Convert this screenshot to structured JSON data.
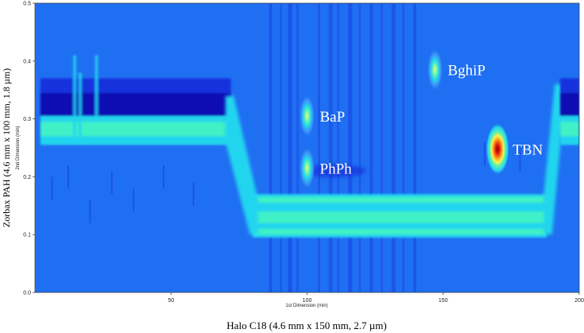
{
  "chart_data": {
    "type": "heatmap",
    "title": "",
    "xlabel": "1st Dimension (min)",
    "ylabel": "2nd Dimension (min)",
    "outer_xlabel": "Halo C18 (4.6 mm x 150 mm, 2.7 µm)",
    "outer_ylabel": "Zorbax PAH (4.6 mm x 100 mm, 1.8 µm)",
    "xlim": [
      0,
      200
    ],
    "ylim": [
      0,
      0.5
    ],
    "x_ticks": [
      "50",
      "100",
      "150",
      "200"
    ],
    "y_ticks": [
      "0.0",
      "0.1",
      "0.2",
      "0.3",
      "0.4",
      "0.5"
    ],
    "colorscale": [
      "#1f6ff2",
      "#1733dd",
      "#0a10b3",
      "#22d5ee",
      "#3ff0c6",
      "#fff04a",
      "#f5461f",
      "#8a0000"
    ],
    "background_color": "#1f6ff2",
    "peaks": [
      {
        "label": "BaP",
        "x": 100,
        "y": 0.305,
        "intensity": "moderate"
      },
      {
        "label": "PhPh",
        "x": 100,
        "y": 0.215,
        "intensity": "moderate"
      },
      {
        "label": "BghiP",
        "x": 147,
        "y": 0.385,
        "intensity": "moderate"
      },
      {
        "label": "TBN",
        "x": 170,
        "y": 0.248,
        "intensity": "high"
      }
    ],
    "bands": [
      {
        "name": "early-baseline",
        "x_range": [
          0,
          70
        ],
        "y_center": 0.285
      },
      {
        "name": "shifted-baseline",
        "x_range": [
          80,
          188
        ],
        "y_center": 0.13
      },
      {
        "name": "late-baseline",
        "x_range": [
          192,
          200
        ],
        "y_center": 0.285
      }
    ]
  }
}
